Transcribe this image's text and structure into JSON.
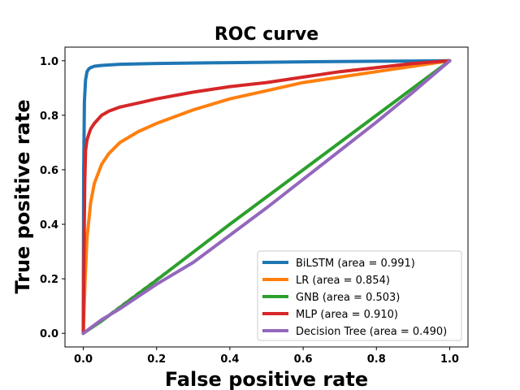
{
  "chart_data": {
    "type": "line",
    "title": "ROC curve",
    "xlabel": "False positive rate",
    "ylabel": "True positive rate",
    "xlim": [
      -0.05,
      1.05
    ],
    "ylim": [
      -0.05,
      1.05
    ],
    "xticks": [
      0.0,
      0.2,
      0.4,
      0.6,
      0.8,
      1.0
    ],
    "xtick_labels": [
      "0.0",
      "0.2",
      "0.4",
      "0.6",
      "0.8",
      "1.0"
    ],
    "yticks": [
      0.0,
      0.2,
      0.4,
      0.6,
      0.8,
      1.0
    ],
    "ytick_labels": [
      "0.0",
      "0.2",
      "0.4",
      "0.6",
      "0.8",
      "1.0"
    ],
    "legend_position": "bottom-right",
    "reference_line": {
      "x": [
        0,
        1
      ],
      "y": [
        0,
        1
      ],
      "color": "#000000",
      "style": "dashed"
    },
    "series": [
      {
        "name": "BiLSTM (area = 0.991)",
        "color": "#1f77b4",
        "x": [
          0,
          0.001,
          0.003,
          0.006,
          0.01,
          0.015,
          0.02,
          0.03,
          0.05,
          0.1,
          0.2,
          0.4,
          0.6,
          0.8,
          1.0
        ],
        "y": [
          0,
          0.6,
          0.85,
          0.93,
          0.96,
          0.97,
          0.975,
          0.98,
          0.983,
          0.987,
          0.99,
          0.993,
          0.996,
          0.998,
          1.0
        ]
      },
      {
        "name": "LR (area = 0.854)",
        "color": "#ff7f0e",
        "x": [
          0,
          0.005,
          0.01,
          0.02,
          0.03,
          0.05,
          0.07,
          0.1,
          0.15,
          0.2,
          0.3,
          0.4,
          0.5,
          0.6,
          0.7,
          0.8,
          0.9,
          1.0
        ],
        "y": [
          0,
          0.2,
          0.35,
          0.48,
          0.55,
          0.62,
          0.66,
          0.7,
          0.74,
          0.77,
          0.82,
          0.86,
          0.89,
          0.92,
          0.94,
          0.96,
          0.98,
          1.0
        ]
      },
      {
        "name": "GNB (area = 0.503)",
        "color": "#2ca02c",
        "x": [
          0,
          0.05,
          0.2,
          0.4,
          0.6,
          0.8,
          1.0
        ],
        "y": [
          0,
          0.045,
          0.195,
          0.4,
          0.6,
          0.8,
          1.0
        ]
      },
      {
        "name": "MLP (area = 0.910)",
        "color": "#d62728",
        "x": [
          0,
          0.002,
          0.004,
          0.006,
          0.01,
          0.015,
          0.02,
          0.03,
          0.05,
          0.07,
          0.1,
          0.15,
          0.2,
          0.3,
          0.4,
          0.5,
          0.6,
          0.7,
          0.8,
          0.9,
          1.0
        ],
        "y": [
          0,
          0.3,
          0.55,
          0.67,
          0.71,
          0.73,
          0.75,
          0.77,
          0.8,
          0.815,
          0.83,
          0.845,
          0.86,
          0.885,
          0.905,
          0.92,
          0.94,
          0.96,
          0.975,
          0.99,
          1.0
        ]
      },
      {
        "name": "Decision Tree (area = 0.490)",
        "color": "#9467bd",
        "x": [
          0,
          0.05,
          0.1,
          0.2,
          0.3,
          0.4,
          0.5,
          0.6,
          0.7,
          0.8,
          0.9,
          1.0
        ],
        "y": [
          0,
          0.05,
          0.09,
          0.18,
          0.26,
          0.36,
          0.46,
          0.565,
          0.67,
          0.775,
          0.885,
          1.0
        ]
      }
    ]
  }
}
